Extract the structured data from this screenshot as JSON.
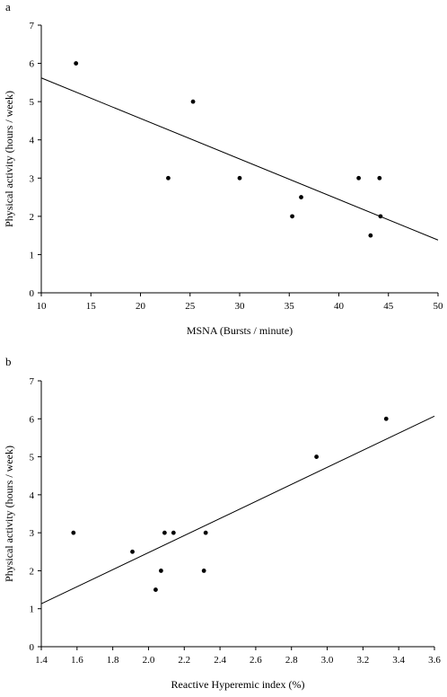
{
  "chart_data": [
    {
      "panel": "a",
      "type": "scatter",
      "title": "",
      "xlabel": "MSNA (Bursts / minute)",
      "ylabel": "Physical activity (hours / week)",
      "xlim": [
        10,
        50
      ],
      "ylim": [
        0,
        7
      ],
      "xticks": [
        10,
        15,
        20,
        25,
        30,
        35,
        40,
        45,
        50
      ],
      "yticks": [
        0,
        1,
        2,
        3,
        4,
        5,
        6,
        7
      ],
      "grid": false,
      "points": [
        {
          "x": 13.5,
          "y": 6
        },
        {
          "x": 22.8,
          "y": 3
        },
        {
          "x": 25.3,
          "y": 5
        },
        {
          "x": 30.0,
          "y": 3
        },
        {
          "x": 35.3,
          "y": 2
        },
        {
          "x": 36.2,
          "y": 2.5
        },
        {
          "x": 42.0,
          "y": 3
        },
        {
          "x": 43.2,
          "y": 1.5
        },
        {
          "x": 44.1,
          "y": 3
        },
        {
          "x": 44.2,
          "y": 2
        }
      ],
      "trendline": {
        "x": [
          10,
          50
        ],
        "y": [
          5.62,
          1.38
        ]
      }
    },
    {
      "panel": "b",
      "type": "scatter",
      "title": "",
      "xlabel": "Reactive Hyperemic index (%)",
      "ylabel": "Physical activity (hours / week)",
      "xlim": [
        1.4,
        3.6
      ],
      "ylim": [
        0,
        7
      ],
      "xticks": [
        "1.4",
        "1.6",
        "1.8",
        "2.0",
        "2.2",
        "2.4",
        "2.6",
        "2.8",
        "3.0",
        "3.2",
        "3.4",
        "3.6"
      ],
      "yticks": [
        0,
        1,
        2,
        3,
        4,
        5,
        6,
        7
      ],
      "grid": false,
      "points": [
        {
          "x": 1.58,
          "y": 3
        },
        {
          "x": 1.91,
          "y": 2.5
        },
        {
          "x": 2.04,
          "y": 1.5
        },
        {
          "x": 2.07,
          "y": 2
        },
        {
          "x": 2.09,
          "y": 3
        },
        {
          "x": 2.14,
          "y": 3
        },
        {
          "x": 2.31,
          "y": 2
        },
        {
          "x": 2.32,
          "y": 3
        },
        {
          "x": 2.94,
          "y": 5
        },
        {
          "x": 3.33,
          "y": 6
        }
      ],
      "trendline": {
        "x": [
          1.4,
          3.6
        ],
        "y": [
          1.13,
          6.07
        ]
      }
    }
  ]
}
